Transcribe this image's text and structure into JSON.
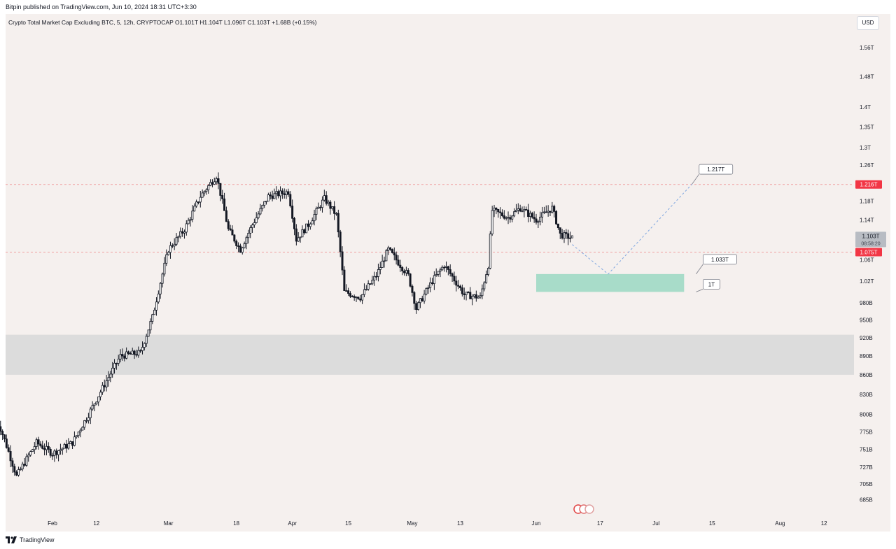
{
  "header": {
    "publisher": "Bitpin published on TradingView.com, Jun 10, 2024 18:31 UTC+3:30",
    "legend": "Crypto Total Market Cap Excluding BTC, 5, 12h, CRYPTOCAP   O1.101T   H1.104T   L1.096T   C1.103T   +1.68B (+0.15%)",
    "currency": "USD"
  },
  "footer": {
    "logo_text": "TradingView"
  },
  "colors": {
    "background": "#f5f0ee",
    "candle": "#131722",
    "resistance_line": "#f0a0a0",
    "red_tag": "#f23645",
    "gray_zone": "#dcdcdc",
    "green_zone": "#a8dcc9",
    "projection": "#7ea6e0",
    "current_price_tag": "#b8bcc3"
  },
  "chart_data": {
    "type": "candlestick",
    "title": "Crypto Total Market Cap Excluding BTC, 5, 12h, CRYPTOCAP",
    "currency": "USD",
    "y_scale": "log",
    "ylim": [
      "665B",
      "1.62T"
    ],
    "y_ticks": [
      "1.56T",
      "1.48T",
      "1.4T",
      "1.35T",
      "1.3T",
      "1.26T",
      "1.18T",
      "1.14T",
      "1.06T",
      "1.02T",
      "980B",
      "950B",
      "920B",
      "890B",
      "860B",
      "830B",
      "800B",
      "775B",
      "751B",
      "727B",
      "705B",
      "685B"
    ],
    "x_ticks": [
      "Feb",
      "12",
      "Mar",
      "18",
      "Apr",
      "15",
      "May",
      "13",
      "Jun",
      "17",
      "Jul",
      "15",
      "Aug",
      "12"
    ],
    "ohlc_last": {
      "open": "1.101T",
      "high": "1.104T",
      "low": "1.096T",
      "close": "1.103T",
      "change": "+1.68B (+0.15%)"
    },
    "path_points": [
      {
        "date": "2024-01-18",
        "value": 790
      },
      {
        "date": "2024-01-19",
        "value": 780
      },
      {
        "date": "2024-01-23",
        "value": 715
      },
      {
        "date": "2024-01-28",
        "value": 760
      },
      {
        "date": "2024-02-01",
        "value": 745
      },
      {
        "date": "2024-02-06",
        "value": 760
      },
      {
        "date": "2024-02-10",
        "value": 800
      },
      {
        "date": "2024-02-14",
        "value": 845
      },
      {
        "date": "2024-02-18",
        "value": 890
      },
      {
        "date": "2024-02-23",
        "value": 895
      },
      {
        "date": "2024-02-26",
        "value": 955
      },
      {
        "date": "2024-03-01",
        "value": 1080
      },
      {
        "date": "2024-03-05",
        "value": 1120
      },
      {
        "date": "2024-03-09",
        "value": 1190
      },
      {
        "date": "2024-03-13",
        "value": 1235
      },
      {
        "date": "2024-03-16",
        "value": 1120
      },
      {
        "date": "2024-03-19",
        "value": 1080
      },
      {
        "date": "2024-03-22",
        "value": 1130
      },
      {
        "date": "2024-03-26",
        "value": 1190
      },
      {
        "date": "2024-03-31",
        "value": 1200
      },
      {
        "date": "2024-04-02",
        "value": 1100
      },
      {
        "date": "2024-04-05",
        "value": 1130
      },
      {
        "date": "2024-04-09",
        "value": 1185
      },
      {
        "date": "2024-04-12",
        "value": 1150
      },
      {
        "date": "2024-04-14",
        "value": 1000
      },
      {
        "date": "2024-04-18",
        "value": 990
      },
      {
        "date": "2024-04-22",
        "value": 1030
      },
      {
        "date": "2024-04-25",
        "value": 1080
      },
      {
        "date": "2024-04-30",
        "value": 1030
      },
      {
        "date": "2024-05-02",
        "value": 970
      },
      {
        "date": "2024-05-06",
        "value": 1020
      },
      {
        "date": "2024-05-09",
        "value": 1050
      },
      {
        "date": "2024-05-14",
        "value": 995
      },
      {
        "date": "2024-05-18",
        "value": 990
      },
      {
        "date": "2024-05-20",
        "value": 1050
      },
      {
        "date": "2024-05-21",
        "value": 1160
      },
      {
        "date": "2024-05-25",
        "value": 1145
      },
      {
        "date": "2024-05-28",
        "value": 1165
      },
      {
        "date": "2024-06-01",
        "value": 1140
      },
      {
        "date": "2024-06-05",
        "value": 1165
      },
      {
        "date": "2024-06-07",
        "value": 1110
      },
      {
        "date": "2024-06-10",
        "value": 1103
      }
    ],
    "levels": [
      {
        "label": "1.216T",
        "value": 1216,
        "style": "dashed-red",
        "tag": "red"
      },
      {
        "label": "1.075T",
        "value": 1075,
        "style": "dashed-red",
        "tag": "red"
      }
    ],
    "current_price": {
      "label": "1.103T",
      "value": 1103,
      "countdown": "08:58:20"
    },
    "zones": [
      {
        "kind": "demand",
        "low": "860B",
        "high": "925B"
      },
      {
        "kind": "target",
        "low": "1T",
        "high": "1.033T",
        "from": "2024-06-01",
        "to": "2024-07-08"
      }
    ],
    "projection": [
      {
        "date": "2024-06-10",
        "value": "1.09T"
      },
      {
        "date": "2024-06-19",
        "value": "1.033T"
      },
      {
        "date": "2024-07-10",
        "value": "1.217T"
      }
    ],
    "annotations": [
      {
        "text": "1.217T",
        "date": "2024-07-10",
        "value": 1217
      },
      {
        "text": "1.033T",
        "date": "2024-07-11",
        "value": 1033
      },
      {
        "text": "1T",
        "date": "2024-07-11",
        "value": 1000
      }
    ]
  }
}
